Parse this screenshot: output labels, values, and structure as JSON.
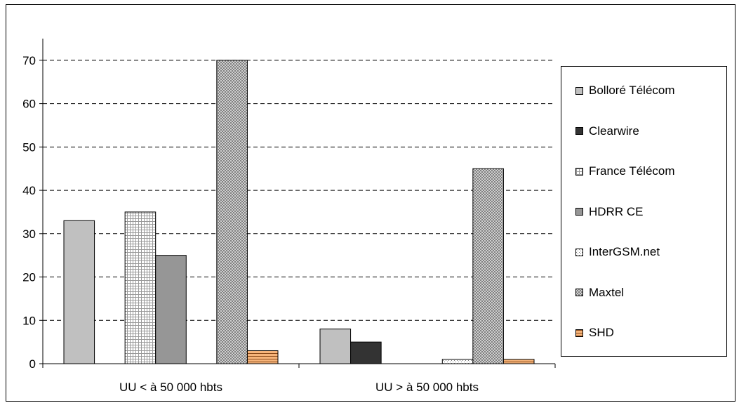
{
  "chart_data": {
    "type": "bar",
    "categories": [
      "UU < à 50 000 hbts",
      "UU > à 50 000 hbts"
    ],
    "series": [
      {
        "name": "Bolloré Télécom",
        "values": [
          33,
          8
        ],
        "color": "#c0c0c0",
        "pattern": "solid"
      },
      {
        "name": "Clearwire",
        "values": [
          0,
          5
        ],
        "color": "#333333",
        "pattern": "solid"
      },
      {
        "name": "France Télécom",
        "values": [
          35,
          0
        ],
        "color": "#ffffff",
        "pattern": "grid"
      },
      {
        "name": "HDRR CE",
        "values": [
          25,
          0
        ],
        "color": "#969696",
        "pattern": "solid"
      },
      {
        "name": "InterGSM.net",
        "values": [
          0,
          1
        ],
        "color": "#ffffff",
        "pattern": "dots"
      },
      {
        "name": "Maxtel",
        "values": [
          70,
          45
        ],
        "color": "#e0e0e0",
        "pattern": "weave"
      },
      {
        "name": "SHD",
        "values": [
          3,
          1
        ],
        "color": "#f6b47a",
        "pattern": "stripes"
      }
    ],
    "yticks": [
      0,
      10,
      20,
      30,
      40,
      50,
      60,
      70
    ],
    "ylim": [
      0,
      75
    ],
    "grid": "dashed horizontal",
    "legend": "right"
  }
}
